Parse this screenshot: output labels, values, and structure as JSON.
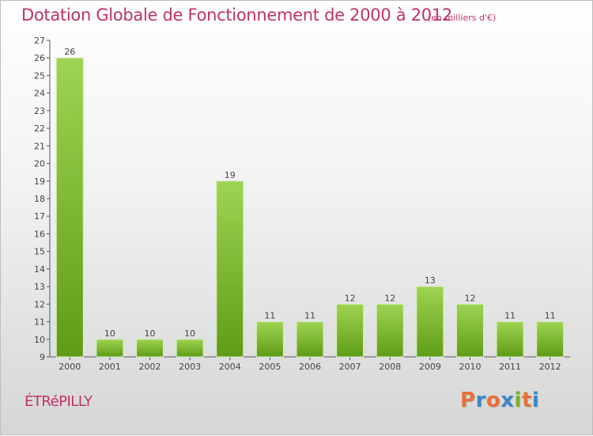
{
  "chart_data": {
    "type": "bar",
    "title": "Dotation Globale de Fonctionnement de 2000 à 2012",
    "subtitle": "(en milliers d'€)",
    "categories": [
      "2000",
      "2001",
      "2002",
      "2003",
      "2004",
      "2005",
      "2006",
      "2007",
      "2008",
      "2009",
      "2010",
      "2011",
      "2012"
    ],
    "values": [
      26,
      10,
      10,
      10,
      19,
      11,
      11,
      12,
      12,
      13,
      12,
      11,
      11
    ],
    "ylim": [
      9,
      27
    ],
    "yticks": [
      9,
      10,
      11,
      12,
      13,
      14,
      15,
      16,
      17,
      18,
      19,
      20,
      21,
      22,
      23,
      24,
      25,
      26,
      27
    ],
    "xlabel": "",
    "ylabel": "",
    "grid": false,
    "bar_color": "#7fbf2a"
  },
  "commune": "ÉTRéPILLY",
  "logo": {
    "letters": [
      "P",
      "r",
      "o",
      "x",
      "i",
      "t",
      "i"
    ],
    "colors": [
      "#e8703a",
      "#3a86c8",
      "#e8703a",
      "#3a86c8",
      "#7ab22a",
      "#e8703a",
      "#3a86c8"
    ]
  },
  "accent_color": "#c0326a"
}
